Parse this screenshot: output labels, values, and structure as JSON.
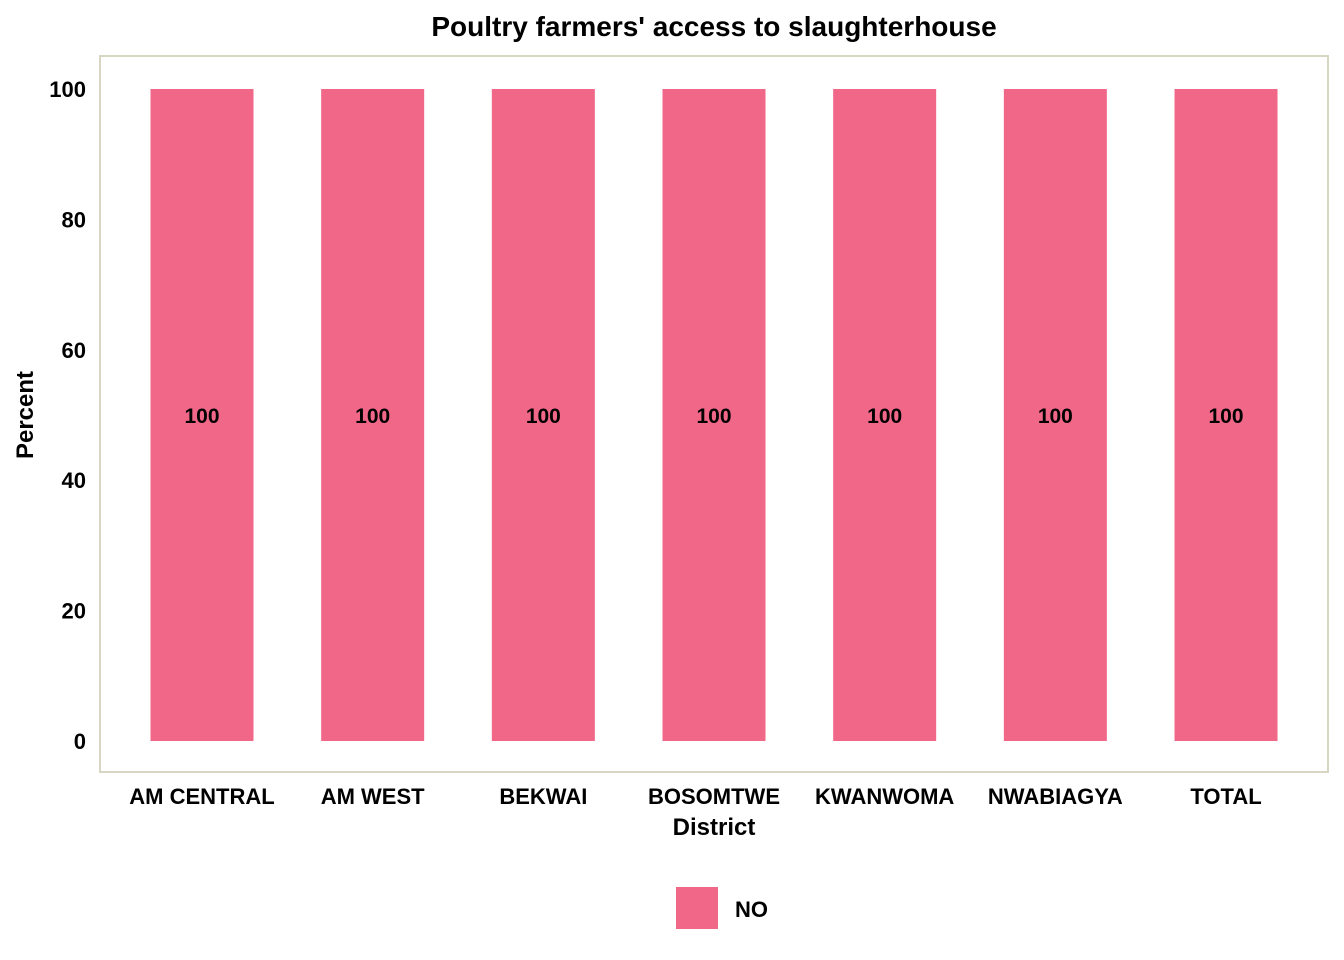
{
  "chart_data": {
    "type": "bar",
    "title": "Poultry farmers' access to slaughterhouse",
    "xlabel": "District",
    "ylabel": "Percent",
    "categories": [
      "AM CENTRAL",
      "AM WEST",
      "BEKWAI",
      "BOSOMTWE",
      "KWANWOMA",
      "NWABIAGYA",
      "TOTAL"
    ],
    "series": [
      {
        "name": "NO",
        "values": [
          100,
          100,
          100,
          100,
          100,
          100,
          100
        ],
        "color": "#f06788"
      }
    ],
    "data_labels": [
      "100",
      "100",
      "100",
      "100",
      "100",
      "100",
      "100"
    ],
    "yticks": [
      0,
      20,
      40,
      60,
      80,
      100
    ],
    "ylim": [
      0,
      100
    ],
    "grid": false,
    "legend_position": "bottom",
    "frame_color": "#d6d6c2"
  }
}
